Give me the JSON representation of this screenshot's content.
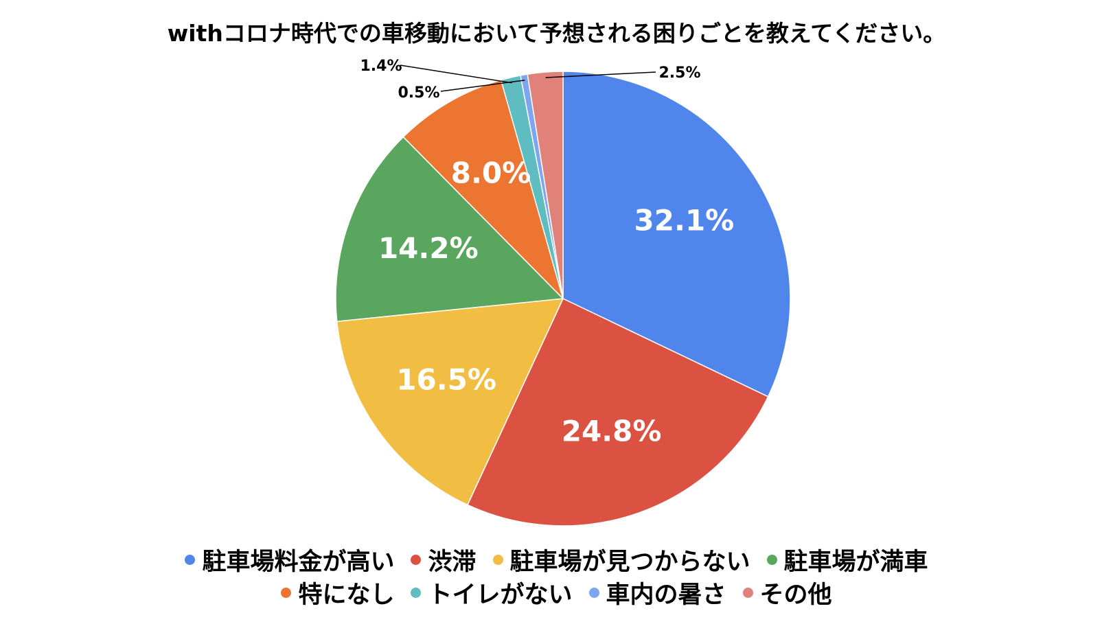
{
  "chart_data": {
    "type": "pie",
    "title": "withコロナ時代での車移動において予想される困りごとを教えてください。",
    "categories": [
      "駐車場料金が高い",
      "渋滞",
      "駐車場が見つからない",
      "駐車場が満車",
      "特になし",
      "トイレがない",
      "車内の暑さ",
      "その他"
    ],
    "values": [
      32.1,
      24.8,
      16.5,
      14.2,
      8.0,
      1.4,
      0.5,
      2.5
    ],
    "labels": [
      "32.1%",
      "24.8%",
      "16.5%",
      "14.2%",
      "8.0%",
      "1.4%",
      "0.5%",
      "2.5%"
    ],
    "colors": [
      "#5086ec",
      "#dc5242",
      "#f1be43",
      "#5aa65e",
      "#ed7532",
      "#5fbdc1",
      "#7ea5f0",
      "#e0817a"
    ],
    "legend_position": "bottom"
  }
}
